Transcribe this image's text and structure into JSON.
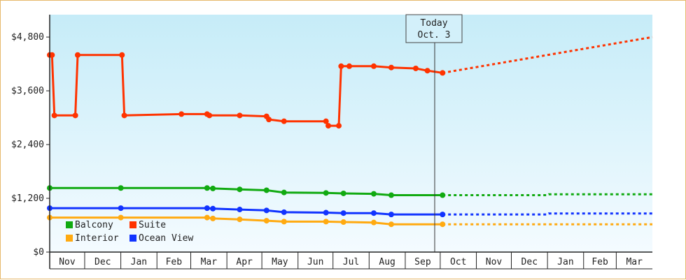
{
  "chart_data": {
    "type": "line",
    "y_tick_labels": [
      "$0",
      "$1,200",
      "$2,400",
      "$3,600",
      "$4,800"
    ],
    "y_ticks": [
      0,
      1200,
      2400,
      3600,
      4800
    ],
    "ylim": [
      0,
      5300
    ],
    "x_start": "2023-11-01",
    "x_end": "2025-04-01",
    "x_tick_labels": [
      "Nov",
      "Dec",
      "Jan",
      "Feb",
      "Mar",
      "Apr",
      "May",
      "Jun",
      "Jul",
      "Aug",
      "Sep",
      "Oct",
      "Nov",
      "Dec",
      "Jan",
      "Feb",
      "Mar"
    ],
    "grid": false,
    "legend_position": "bottom-left",
    "today": {
      "line1": "Today",
      "line2": "Oct. 3",
      "date": "2024-10-03"
    },
    "series": [
      {
        "name": "Suite",
        "color": "#ff3300",
        "points": [
          [
            "2023-11-01",
            4400
          ],
          [
            "2023-11-03",
            4400
          ],
          [
            "2023-11-05",
            3050
          ],
          [
            "2023-11-23",
            3050
          ],
          [
            "2023-11-25",
            4400
          ],
          [
            "2024-01-02",
            4400
          ],
          [
            "2024-01-04",
            3050
          ],
          [
            "2024-02-22",
            3080
          ],
          [
            "2024-03-15",
            3080
          ],
          [
            "2024-03-17",
            3050
          ],
          [
            "2024-04-12",
            3050
          ],
          [
            "2024-05-05",
            3030
          ],
          [
            "2024-05-07",
            2960
          ],
          [
            "2024-05-20",
            2920
          ],
          [
            "2024-06-25",
            2920
          ],
          [
            "2024-06-27",
            2820
          ],
          [
            "2024-07-06",
            2820
          ],
          [
            "2024-07-08",
            4150
          ],
          [
            "2024-07-15",
            4150
          ],
          [
            "2024-08-05",
            4150
          ],
          [
            "2024-08-20",
            4120
          ],
          [
            "2024-09-10",
            4100
          ],
          [
            "2024-09-20",
            4050
          ],
          [
            "2024-10-03",
            4000
          ]
        ],
        "projection": [
          [
            "2024-10-03",
            4000
          ],
          [
            "2025-04-01",
            4800
          ]
        ]
      },
      {
        "name": "Balcony",
        "color": "#11aa11",
        "points": [
          [
            "2023-11-01",
            1430
          ],
          [
            "2024-01-01",
            1430
          ],
          [
            "2024-03-15",
            1430
          ],
          [
            "2024-03-20",
            1420
          ],
          [
            "2024-04-12",
            1400
          ],
          [
            "2024-05-05",
            1380
          ],
          [
            "2024-05-20",
            1330
          ],
          [
            "2024-06-25",
            1320
          ],
          [
            "2024-07-10",
            1310
          ],
          [
            "2024-08-05",
            1300
          ],
          [
            "2024-08-20",
            1270
          ],
          [
            "2024-10-03",
            1270
          ]
        ],
        "projection": [
          [
            "2024-10-03",
            1270
          ],
          [
            "2025-01-01",
            1270
          ],
          [
            "2025-01-02",
            1290
          ],
          [
            "2025-04-01",
            1290
          ]
        ]
      },
      {
        "name": "Ocean View",
        "color": "#1133ff",
        "points": [
          [
            "2023-11-01",
            980
          ],
          [
            "2024-01-01",
            980
          ],
          [
            "2024-03-15",
            980
          ],
          [
            "2024-03-20",
            970
          ],
          [
            "2024-04-12",
            950
          ],
          [
            "2024-05-05",
            930
          ],
          [
            "2024-05-20",
            890
          ],
          [
            "2024-06-25",
            880
          ],
          [
            "2024-07-10",
            870
          ],
          [
            "2024-08-05",
            870
          ],
          [
            "2024-08-20",
            840
          ],
          [
            "2024-10-03",
            840
          ]
        ],
        "projection": [
          [
            "2024-10-03",
            840
          ],
          [
            "2025-01-01",
            840
          ],
          [
            "2025-01-02",
            860
          ],
          [
            "2025-04-01",
            860
          ]
        ]
      },
      {
        "name": "Interior",
        "color": "#ffaa11",
        "points": [
          [
            "2023-11-01",
            770
          ],
          [
            "2024-01-01",
            770
          ],
          [
            "2024-03-15",
            770
          ],
          [
            "2024-03-20",
            750
          ],
          [
            "2024-04-12",
            730
          ],
          [
            "2024-05-05",
            700
          ],
          [
            "2024-05-20",
            680
          ],
          [
            "2024-06-25",
            680
          ],
          [
            "2024-07-10",
            670
          ],
          [
            "2024-08-05",
            660
          ],
          [
            "2024-08-20",
            620
          ],
          [
            "2024-10-03",
            620
          ]
        ],
        "projection": [
          [
            "2024-10-03",
            620
          ],
          [
            "2025-04-01",
            620
          ]
        ]
      }
    ]
  },
  "legend": [
    {
      "name": "Balcony",
      "color": "#11aa11"
    },
    {
      "name": "Suite",
      "color": "#ff3300"
    },
    {
      "name": "Interior",
      "color": "#ffaa11"
    },
    {
      "name": "Ocean View",
      "color": "#1133ff"
    }
  ]
}
